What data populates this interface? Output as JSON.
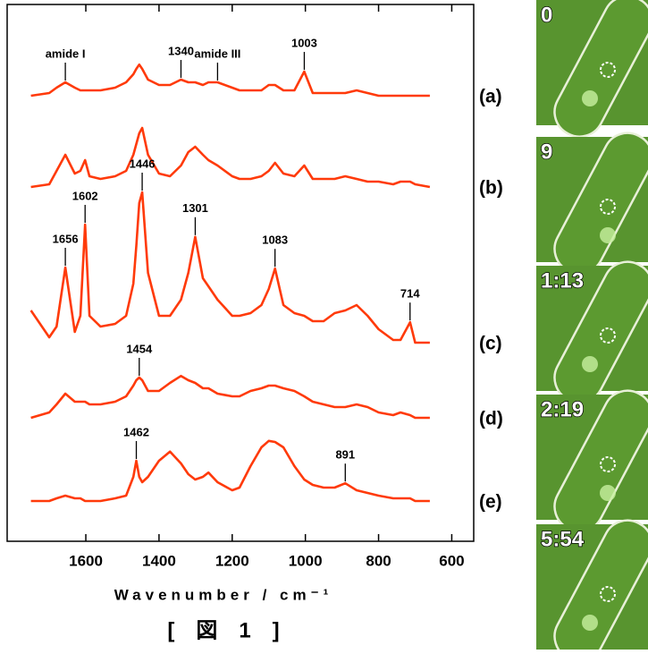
{
  "chart_data": {
    "type": "line",
    "x_label": "Wavenumber / cm⁻¹",
    "x": [
      1750,
      1700,
      1680,
      1656,
      1630,
      1615,
      1602,
      1590,
      1560,
      1520,
      1490,
      1470,
      1462,
      1454,
      1446,
      1430,
      1400,
      1370,
      1340,
      1320,
      1301,
      1280,
      1265,
      1240,
      1200,
      1180,
      1150,
      1120,
      1100,
      1083,
      1060,
      1030,
      1003,
      980,
      950,
      920,
      891,
      860,
      830,
      800,
      760,
      740,
      714,
      700,
      660
    ],
    "xlim": [
      1815,
      540
    ],
    "xticks": [
      1600,
      1400,
      1200,
      1000,
      800,
      600
    ],
    "ylim": [
      0,
      100
    ],
    "grid": false,
    "series": [
      {
        "name": "(a)",
        "color": "#ff3a0a",
        "values": [
          83,
          83.5,
          84.5,
          85.5,
          84.5,
          84,
          84,
          84,
          84,
          84.5,
          85.5,
          87,
          88,
          88.8,
          88,
          86,
          85,
          85,
          86,
          85.5,
          85.5,
          85,
          85.5,
          85.5,
          84.5,
          84,
          84,
          84,
          85,
          85,
          84,
          84,
          87.5,
          83.5,
          83.5,
          83.5,
          83.5,
          84,
          83.5,
          83,
          83,
          83,
          83,
          83,
          83
        ]
      },
      {
        "name": "(b)",
        "color": "#ff3a0a",
        "values": [
          66,
          66.5,
          69,
          72,
          68.5,
          69,
          71,
          68,
          67.5,
          68,
          69,
          72,
          74,
          76,
          77,
          72,
          68.5,
          68,
          70,
          72.5,
          73.5,
          72,
          71,
          70,
          68,
          67.5,
          67.5,
          68,
          69,
          70.5,
          68.5,
          68,
          70,
          67.5,
          67.5,
          67.5,
          68,
          67.5,
          67,
          67,
          66.5,
          67,
          67,
          66.5,
          66
        ]
      },
      {
        "name": "(c)",
        "color": "#ff3a0a",
        "values": [
          43,
          38,
          40,
          51,
          39,
          42,
          59,
          42,
          40,
          40.5,
          42,
          48,
          55,
          63,
          65,
          50,
          42,
          42,
          45,
          50,
          56.7,
          49,
          47.5,
          45,
          42,
          42,
          42.5,
          44,
          47,
          50.8,
          44,
          42.5,
          42,
          41,
          41,
          42.5,
          43,
          44,
          42,
          39.5,
          37.5,
          37.5,
          40.8,
          37,
          37
        ]
      },
      {
        "name": "(d)",
        "color": "#ff3a0a",
        "values": [
          23,
          24,
          25.5,
          27.5,
          26,
          26,
          26,
          25.5,
          25.5,
          26,
          27,
          29,
          30,
          30.5,
          30,
          28,
          28,
          29.5,
          30.8,
          30,
          29.5,
          28.5,
          28.5,
          27.5,
          27,
          27,
          28,
          28.5,
          29,
          29,
          28.5,
          28,
          27,
          26,
          25.5,
          25,
          25,
          25.5,
          25,
          24,
          23.5,
          24,
          23.5,
          23,
          23
        ]
      },
      {
        "name": "(e)",
        "color": "#ff3a0a",
        "values": [
          7.5,
          7.5,
          8,
          8.5,
          8,
          8,
          7.5,
          7.5,
          7.5,
          8,
          8.5,
          12,
          15,
          12,
          11,
          12,
          15,
          16.7,
          14.5,
          12.5,
          11.5,
          12,
          12.8,
          11,
          9.5,
          10,
          14,
          17.5,
          18.7,
          18.5,
          17.5,
          14,
          11.5,
          10.5,
          10,
          10,
          10.8,
          9.5,
          9,
          8.5,
          8,
          8,
          8,
          7.5,
          7.5
        ]
      }
    ],
    "annotations": [
      {
        "text": "amide I",
        "x": 1656,
        "y": 85.5
      },
      {
        "text": "1340",
        "x": 1340,
        "y": 86
      },
      {
        "text": "amide III",
        "x": 1240,
        "y": 85.5
      },
      {
        "text": "1003",
        "x": 1003,
        "y": 87.5
      },
      {
        "text": "1656",
        "x": 1656,
        "y": 51
      },
      {
        "text": "1602",
        "x": 1602,
        "y": 59
      },
      {
        "text": "1446",
        "x": 1446,
        "y": 65
      },
      {
        "text": "1301",
        "x": 1301,
        "y": 56.7
      },
      {
        "text": "1083",
        "x": 1083,
        "y": 50.8
      },
      {
        "text": "714",
        "x": 714,
        "y": 40.8
      },
      {
        "text": "1454",
        "x": 1454,
        "y": 30.5
      },
      {
        "text": "1462",
        "x": 1462,
        "y": 15
      },
      {
        "text": "891",
        "x": 891,
        "y": 10.8
      }
    ]
  },
  "panels": {
    "time_labels": [
      "0",
      "9",
      "1:13",
      "2:19",
      "5:54"
    ]
  },
  "caption": "[　図　1　]"
}
